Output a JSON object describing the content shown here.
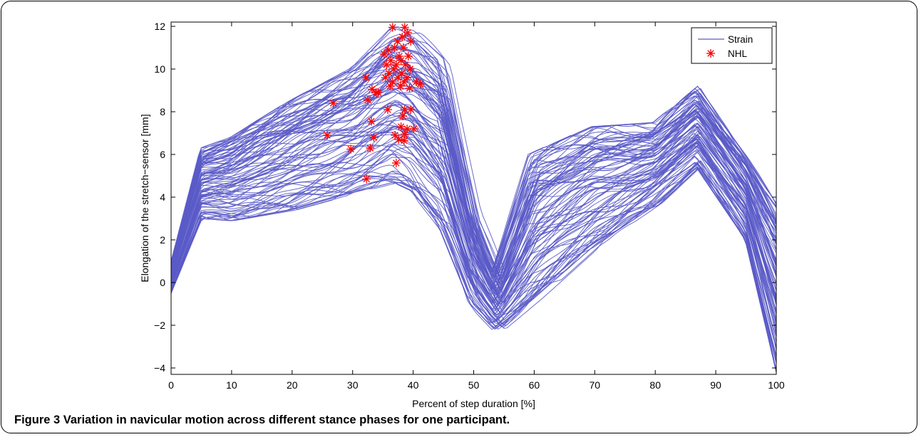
{
  "chart_data": {
    "type": "line",
    "xlabel": "Percent of step duration [%]",
    "ylabel": "Elongation of the stretch−sensor [mm]",
    "xlim": [
      0,
      100
    ],
    "ylim": [
      -4.3,
      12.2
    ],
    "xticks": [
      "0",
      "10",
      "20",
      "30",
      "40",
      "50",
      "60",
      "70",
      "80",
      "90",
      "100"
    ],
    "yticks": [
      "−4",
      "−2",
      "0",
      "2",
      "4",
      "6",
      "8",
      "10",
      "12"
    ],
    "grid": false,
    "legend_position": "top-right",
    "series": [
      {
        "name": "Strain",
        "color": "#5a5ac8",
        "marker": "line",
        "curve_count": 100,
        "description_of_envelope": [
          {
            "x": 0,
            "y_min": -0.5,
            "y_max": 1.0
          },
          {
            "x": 5,
            "y_min": 3.0,
            "y_max": 6.3
          },
          {
            "x": 10,
            "y_min": 2.9,
            "y_max": 6.8
          },
          {
            "x": 20,
            "y_min": 3.4,
            "y_max": 8.5
          },
          {
            "x": 30,
            "y_min": 4.2,
            "y_max": 10.0
          },
          {
            "x": 37,
            "y_min": 4.7,
            "y_max": 12.0
          },
          {
            "x": 40,
            "y_min": 4.3,
            "y_max": 11.8
          },
          {
            "x": 45,
            "y_min": 2.5,
            "y_max": 10.5
          },
          {
            "x": 50,
            "y_min": -1.0,
            "y_max": 3.5
          },
          {
            "x": 54,
            "y_min": -2.2,
            "y_max": 0.5
          },
          {
            "x": 60,
            "y_min": -0.8,
            "y_max": 6.0
          },
          {
            "x": 70,
            "y_min": 1.7,
            "y_max": 7.3
          },
          {
            "x": 80,
            "y_min": 3.6,
            "y_max": 7.5
          },
          {
            "x": 87,
            "y_min": 5.4,
            "y_max": 9.2
          },
          {
            "x": 95,
            "y_min": 2.0,
            "y_max": 6.0
          },
          {
            "x": 100,
            "y_min": -4.2,
            "y_max": 3.7
          }
        ]
      },
      {
        "name": "NHL",
        "color": "#ff0000",
        "marker": "asterisk",
        "points": [
          [
            36.6,
            11.95
          ],
          [
            38.6,
            11.95
          ],
          [
            39.1,
            11.7
          ],
          [
            38.2,
            11.5
          ],
          [
            37.4,
            11.3
          ],
          [
            39.6,
            11.3
          ],
          [
            36.9,
            11.0
          ],
          [
            38.4,
            11.0
          ],
          [
            35.9,
            10.9
          ],
          [
            35.2,
            10.7
          ],
          [
            37.7,
            10.6
          ],
          [
            39.2,
            10.6
          ],
          [
            36.3,
            10.4
          ],
          [
            38.0,
            10.4
          ],
          [
            35.6,
            10.2
          ],
          [
            37.2,
            10.2
          ],
          [
            38.7,
            10.2
          ],
          [
            36.8,
            10.0
          ],
          [
            39.5,
            10.0
          ],
          [
            36.0,
            9.8
          ],
          [
            38.1,
            9.8
          ],
          [
            35.4,
            9.6
          ],
          [
            37.5,
            9.6
          ],
          [
            39.0,
            9.6
          ],
          [
            32.2,
            9.6
          ],
          [
            36.6,
            9.4
          ],
          [
            38.5,
            9.4
          ],
          [
            40.5,
            9.4
          ],
          [
            41.2,
            9.3
          ],
          [
            36.2,
            9.2
          ],
          [
            37.9,
            9.2
          ],
          [
            39.4,
            9.1
          ],
          [
            33.2,
            9.05
          ],
          [
            33.9,
            8.9
          ],
          [
            34.2,
            8.9
          ],
          [
            32.5,
            8.55
          ],
          [
            26.8,
            8.4
          ],
          [
            35.8,
            8.1
          ],
          [
            38.6,
            8.1
          ],
          [
            39.6,
            8.1
          ],
          [
            38.3,
            7.8
          ],
          [
            33.1,
            7.55
          ],
          [
            38.0,
            7.3
          ],
          [
            39.0,
            7.2
          ],
          [
            40.1,
            7.2
          ],
          [
            38.6,
            6.95
          ],
          [
            25.8,
            6.9
          ],
          [
            37.0,
            6.9
          ],
          [
            33.5,
            6.8
          ],
          [
            37.6,
            6.7
          ],
          [
            38.5,
            6.65
          ],
          [
            29.7,
            6.25
          ],
          [
            32.9,
            6.3
          ],
          [
            37.2,
            5.6
          ],
          [
            32.3,
            4.85
          ]
        ]
      }
    ]
  },
  "caption": {
    "label": "Figure 3",
    "text": "Variation in navicular motion across different stance phases for one participant."
  }
}
